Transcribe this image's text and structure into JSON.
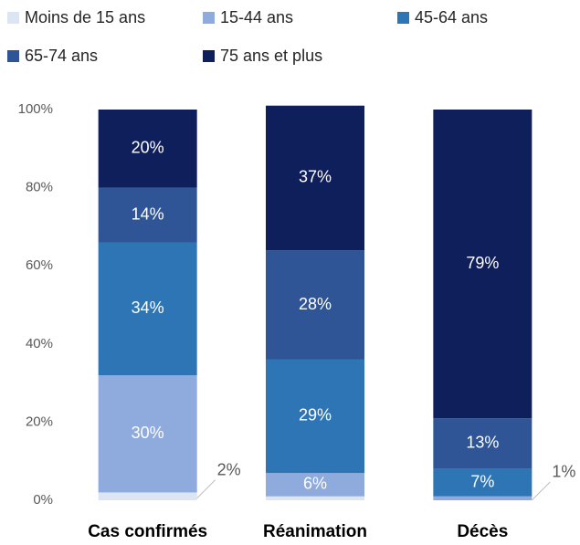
{
  "chart_data": {
    "type": "stacked_bar",
    "categories": [
      "Cas confirmés",
      "Réanimation",
      "Décès"
    ],
    "series": [
      {
        "name": "Moins de 15 ans",
        "color": "#dce6f2",
        "values": [
          2,
          1,
          0
        ],
        "value_labels": [
          "2%",
          null,
          null
        ]
      },
      {
        "name": "15-44 ans",
        "color": "#8faadc",
        "values": [
          30,
          6,
          1
        ],
        "value_labels": [
          "30%",
          "6%",
          "1%"
        ]
      },
      {
        "name": "45-64 ans",
        "color": "#2e75b6",
        "values": [
          34,
          29,
          7
        ],
        "value_labels": [
          "34%",
          "29%",
          "7%"
        ]
      },
      {
        "name": "65-74 ans",
        "color": "#2f5597",
        "values": [
          14,
          28,
          13
        ],
        "value_labels": [
          "14%",
          "28%",
          "13%"
        ]
      },
      {
        "name": "75 ans et plus",
        "color": "#0f1f5c",
        "values": [
          20,
          37,
          79
        ],
        "value_labels": [
          "20%",
          "37%",
          "79%"
        ]
      }
    ],
    "ylim": [
      0,
      100
    ],
    "yticks": [
      {
        "value": 0,
        "label": "0%"
      },
      {
        "value": 20,
        "label": "20%"
      },
      {
        "value": 40,
        "label": "40%"
      },
      {
        "value": 60,
        "label": "60%"
      },
      {
        "value": 80,
        "label": "80%"
      },
      {
        "value": 100,
        "label": "100%"
      }
    ],
    "grid": false
  }
}
